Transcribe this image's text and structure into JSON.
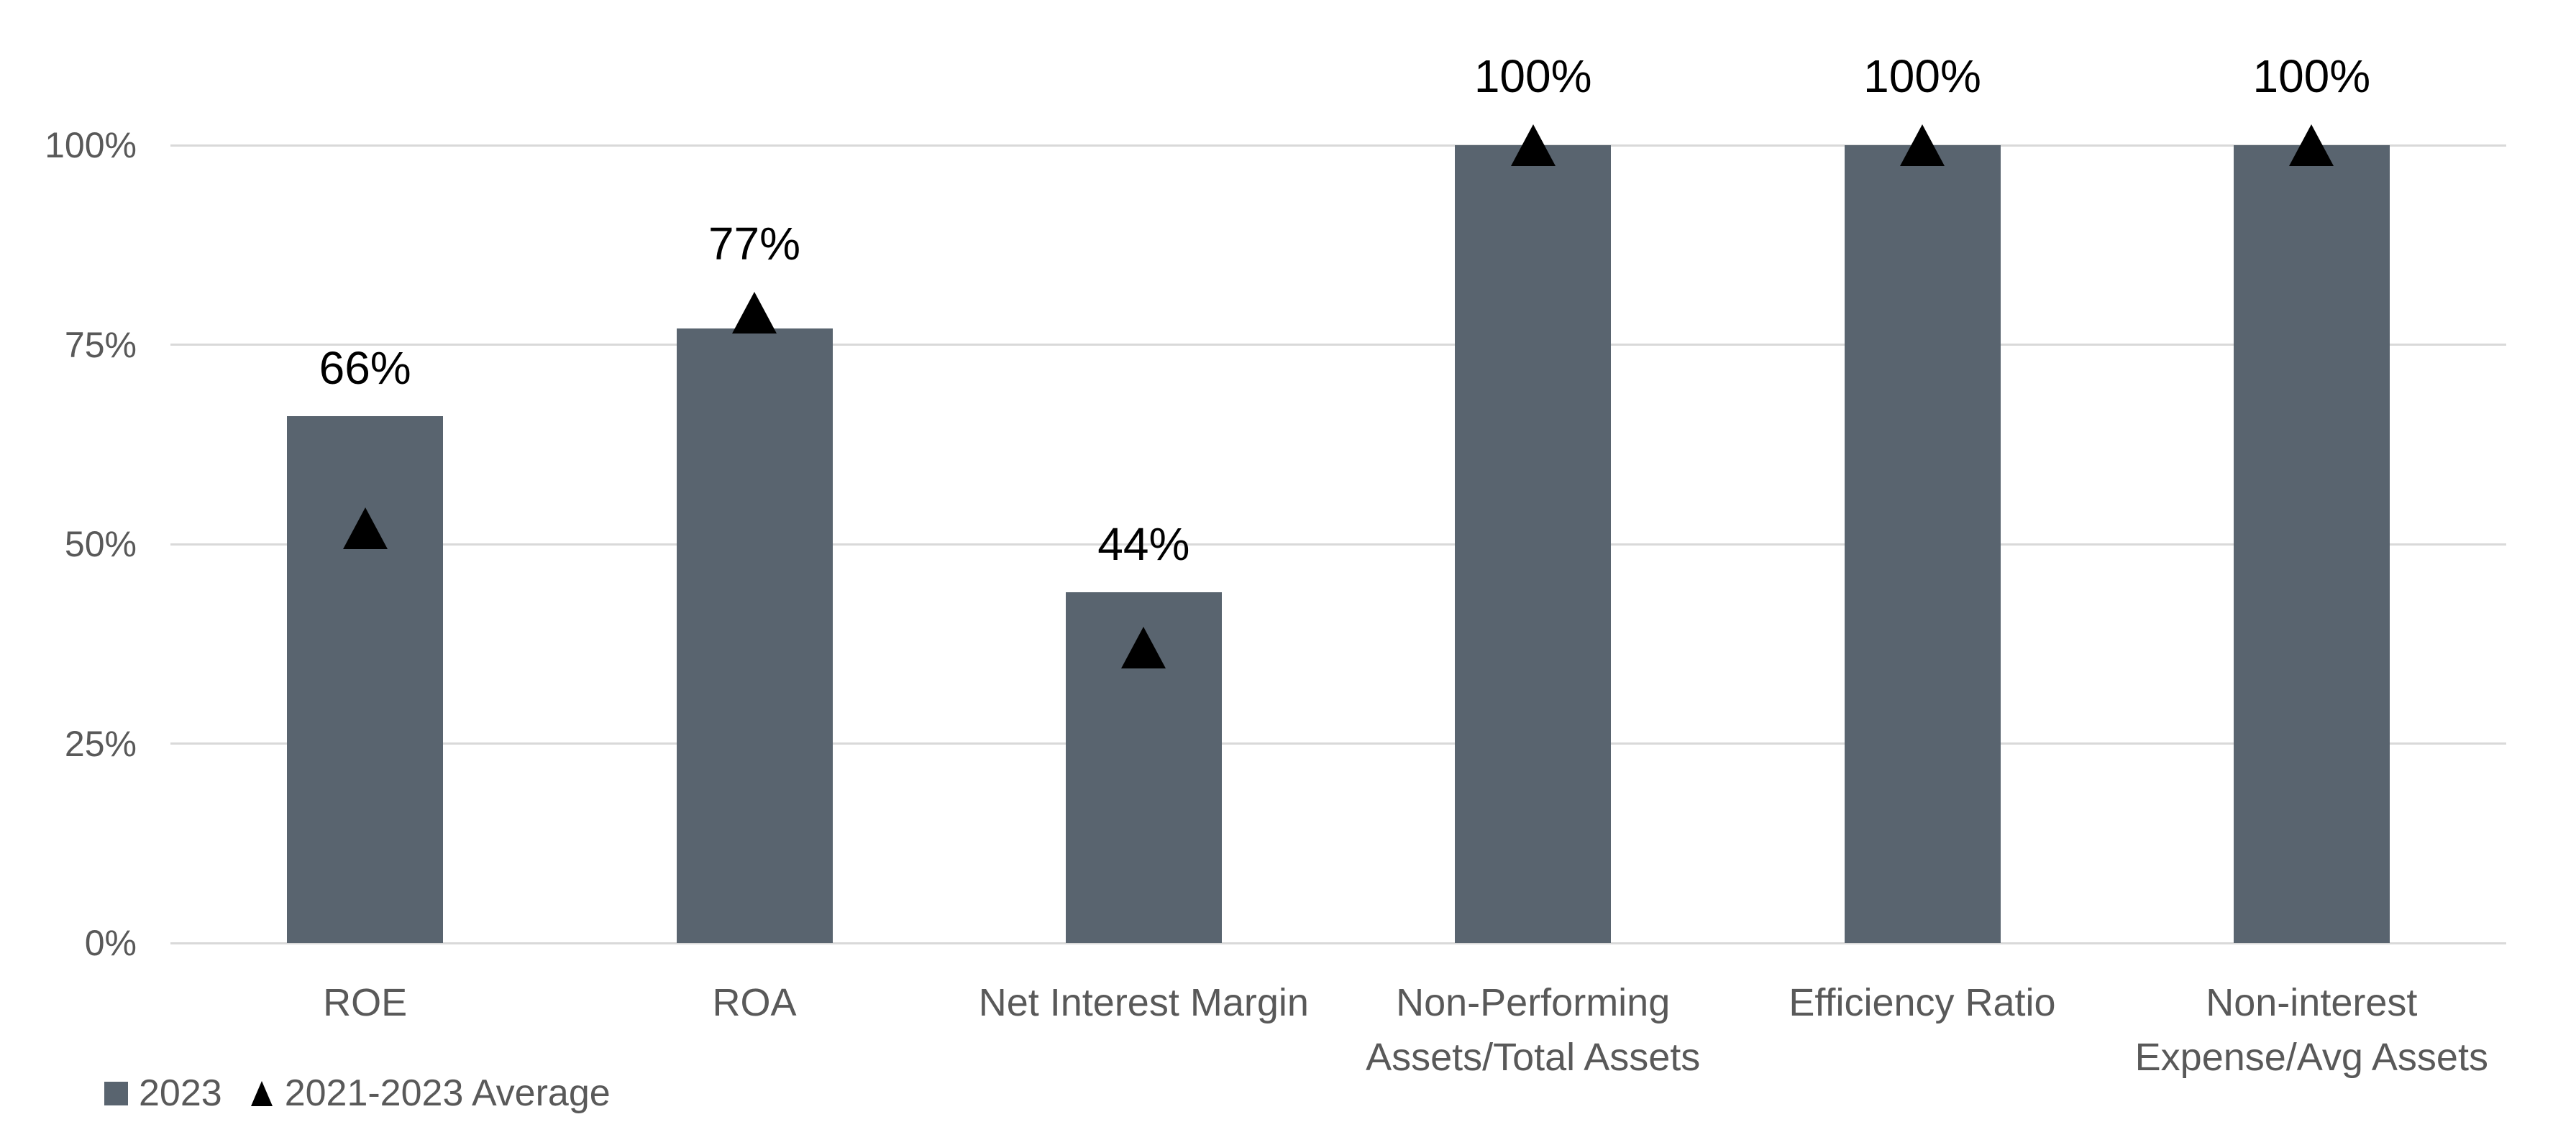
{
  "chart_data": {
    "type": "bar",
    "title": "",
    "xlabel": "",
    "ylabel": "",
    "categories": [
      "ROE",
      "ROA",
      "Net Interest Margin",
      "Non-Performing Assets/Total Assets",
      "Efficiency Ratio",
      "Non-interest Expense/Avg Assets"
    ],
    "series": [
      {
        "name": "2023",
        "type": "bar",
        "values": [
          66,
          77,
          44,
          100,
          100,
          100
        ],
        "data_labels": [
          "66%",
          "77%",
          "44%",
          "100%",
          "100%",
          "100%"
        ],
        "color": "#59646f"
      },
      {
        "name": "2021-2023 Average",
        "type": "triangle-marker",
        "values": [
          52,
          79,
          37,
          100,
          100,
          100
        ],
        "color": "#000000"
      }
    ],
    "y_axis": {
      "min": 0,
      "max": 100,
      "tick_values": [
        0,
        25,
        50,
        75,
        100
      ],
      "tick_labels": [
        "0%",
        "25%",
        "50%",
        "75%",
        "100%"
      ]
    },
    "grid": true,
    "legend_position": "bottom-left",
    "colors": {
      "background": "#ffffff",
      "gridline": "#d9d9d9",
      "axis_text": "#595959",
      "category_text": "#595959",
      "data_label_text": "#000000"
    }
  },
  "legend": {
    "items": [
      {
        "label": "2023",
        "marker": "square"
      },
      {
        "label": "2021-2023 Average",
        "marker": "triangle"
      }
    ]
  }
}
